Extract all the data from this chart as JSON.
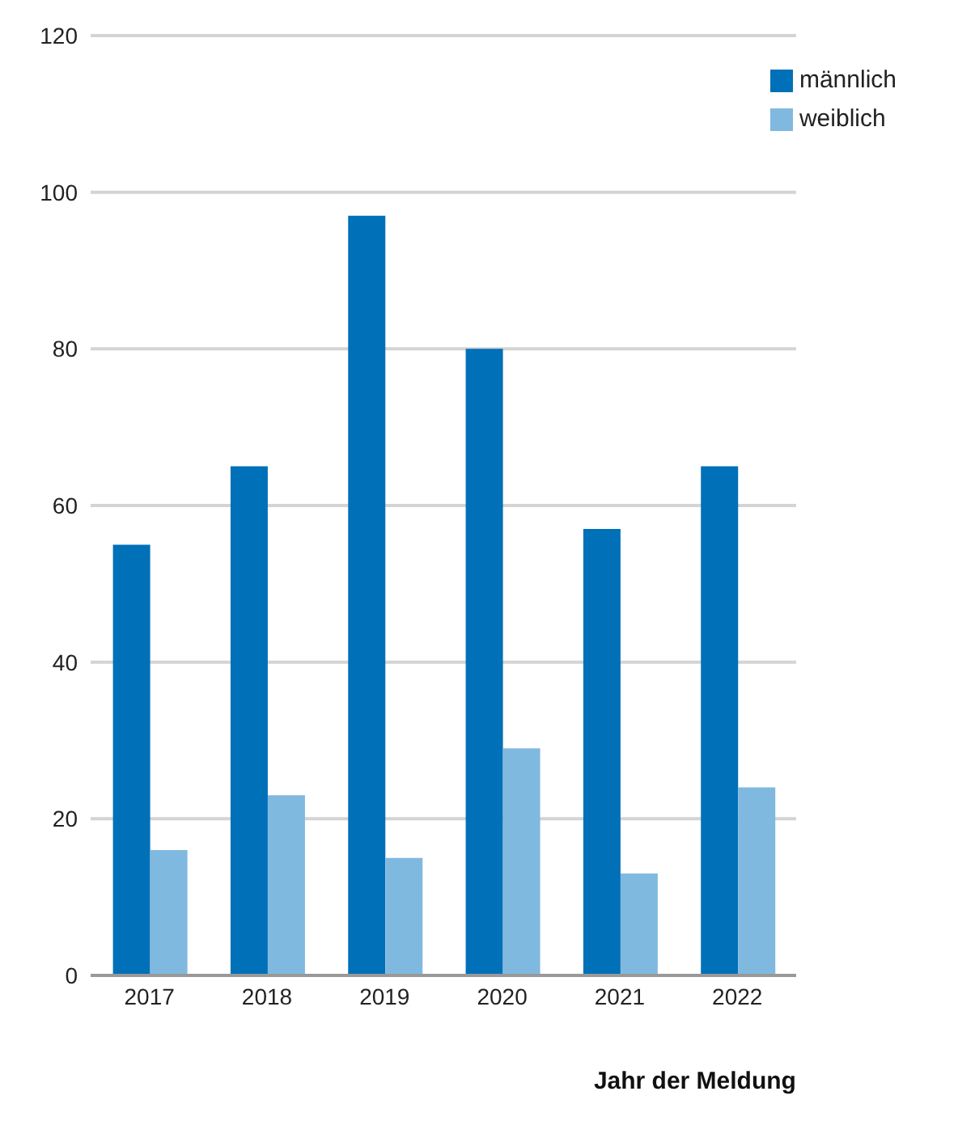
{
  "chart_data": {
    "type": "bar",
    "xlabel": "Jahr der Meldung",
    "categories": [
      "2017",
      "2018",
      "2019",
      "2020",
      "2021",
      "2022"
    ],
    "series": [
      {
        "name": "männlich",
        "color": "#0070b8",
        "values": [
          55,
          65,
          97,
          80,
          57,
          65
        ]
      },
      {
        "name": "weiblich",
        "color": "#80b9df",
        "values": [
          16,
          23,
          15,
          29,
          13,
          24
        ]
      }
    ],
    "ylim": [
      0,
      120
    ],
    "yticks": [
      0,
      20,
      40,
      60,
      80,
      100,
      120
    ],
    "grid": "y",
    "legend": "top right"
  }
}
